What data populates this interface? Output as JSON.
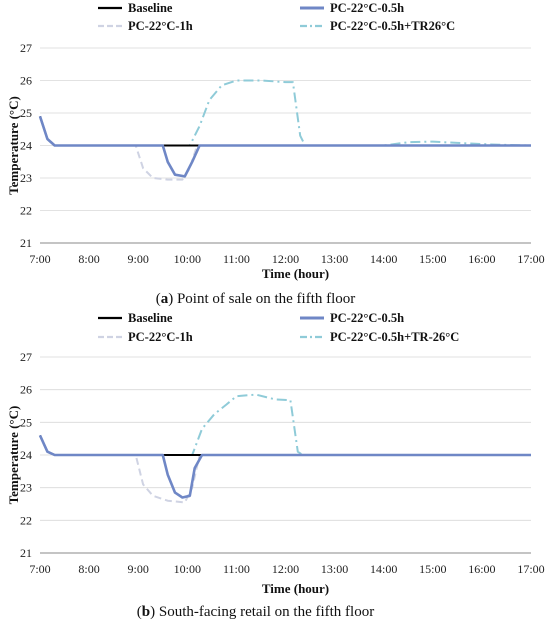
{
  "chart_data": [
    {
      "type": "line",
      "caption_letter": "a",
      "caption_text": "Point of sale on the fifth floor",
      "xlabel": "Time (hour)",
      "ylabel": "Temperature (°C)",
      "xlim": [
        7,
        17
      ],
      "ylim": [
        21,
        27
      ],
      "x_ticks": [
        7,
        8,
        9,
        10,
        11,
        12,
        13,
        14,
        15,
        16,
        17
      ],
      "x_tick_labels": [
        "7:00",
        "8:00",
        "9:00",
        "10:00",
        "11:00",
        "12:00",
        "13:00",
        "14:00",
        "15:00",
        "16:00",
        "17:00"
      ],
      "y_ticks": [
        21,
        22,
        23,
        24,
        25,
        26,
        27
      ],
      "y_tick_labels": [
        "21",
        "22",
        "23",
        "24",
        "25",
        "26",
        "27"
      ],
      "grid": "horizontal",
      "legend_position": "top",
      "series": [
        {
          "name": "Baseline",
          "color": "#000000",
          "style": "solid",
          "points": [
            [
              7.0,
              24.9
            ],
            [
              7.15,
              24.2
            ],
            [
              7.3,
              24.0
            ],
            [
              17.0,
              24.0
            ]
          ]
        },
        {
          "name": "PC-22°C-1h",
          "color": "#cfd3e3",
          "style": "dashed",
          "points": [
            [
              7.0,
              24.9
            ],
            [
              7.15,
              24.2
            ],
            [
              7.3,
              24.0
            ],
            [
              8.95,
              24.0
            ],
            [
              9.1,
              23.3
            ],
            [
              9.3,
              23.0
            ],
            [
              9.6,
              22.95
            ],
            [
              9.9,
              22.95
            ],
            [
              10.05,
              23.3
            ],
            [
              10.2,
              24.0
            ],
            [
              17.0,
              24.0
            ]
          ]
        },
        {
          "name": "PC-22°C-0.5h",
          "color": "#6f87c6",
          "style": "solid",
          "points": [
            [
              7.0,
              24.9
            ],
            [
              7.15,
              24.2
            ],
            [
              7.3,
              24.0
            ],
            [
              9.5,
              24.0
            ],
            [
              9.6,
              23.5
            ],
            [
              9.75,
              23.1
            ],
            [
              9.95,
              23.05
            ],
            [
              10.1,
              23.5
            ],
            [
              10.25,
              24.0
            ],
            [
              17.0,
              24.0
            ]
          ]
        },
        {
          "name": "PC-22°C-0.5h+TR26°C",
          "color": "#8fcbd8",
          "style": "dashdot",
          "points": [
            [
              7.0,
              24.9
            ],
            [
              7.15,
              24.2
            ],
            [
              7.3,
              24.0
            ],
            [
              10.05,
              24.0
            ],
            [
              10.25,
              24.6
            ],
            [
              10.45,
              25.4
            ],
            [
              10.7,
              25.85
            ],
            [
              11.0,
              26.0
            ],
            [
              11.5,
              26.0
            ],
            [
              12.0,
              25.95
            ],
            [
              12.15,
              25.95
            ],
            [
              12.3,
              24.3
            ],
            [
              12.4,
              24.0
            ],
            [
              14.0,
              24.0
            ],
            [
              14.5,
              24.1
            ],
            [
              15.0,
              24.12
            ],
            [
              15.5,
              24.08
            ],
            [
              16.2,
              24.03
            ],
            [
              17.0,
              24.0
            ]
          ]
        }
      ]
    },
    {
      "type": "line",
      "caption_letter": "b",
      "caption_text": "South-facing retail on the fifth floor",
      "xlabel": "Time (hour)",
      "ylabel": "Temperature (°C)",
      "xlim": [
        7,
        17
      ],
      "ylim": [
        21,
        27
      ],
      "x_ticks": [
        7,
        8,
        9,
        10,
        11,
        12,
        13,
        14,
        15,
        16,
        17
      ],
      "x_tick_labels": [
        "7:00",
        "8:00",
        "9:00",
        "10:00",
        "11:00",
        "12:00",
        "13:00",
        "14:00",
        "15:00",
        "16:00",
        "17:00"
      ],
      "y_ticks": [
        21,
        22,
        23,
        24,
        25,
        26,
        27
      ],
      "y_tick_labels": [
        "21",
        "22",
        "23",
        "24",
        "25",
        "26",
        "27"
      ],
      "grid": "horizontal",
      "legend_position": "top",
      "series": [
        {
          "name": "Baseline",
          "color": "#000000",
          "style": "solid",
          "points": [
            [
              7.0,
              24.6
            ],
            [
              7.15,
              24.1
            ],
            [
              7.3,
              24.0
            ],
            [
              17.0,
              24.0
            ]
          ]
        },
        {
          "name": "PC-22°C-1h",
          "color": "#cfd3e3",
          "style": "dashed",
          "points": [
            [
              7.0,
              24.6
            ],
            [
              7.15,
              24.1
            ],
            [
              7.3,
              24.0
            ],
            [
              8.95,
              24.0
            ],
            [
              9.1,
              23.1
            ],
            [
              9.3,
              22.75
            ],
            [
              9.6,
              22.6
            ],
            [
              9.95,
              22.55
            ],
            [
              10.1,
              23.0
            ],
            [
              10.25,
              24.0
            ],
            [
              17.0,
              24.0
            ]
          ]
        },
        {
          "name": "PC-22°C-0.5h",
          "color": "#6f87c6",
          "style": "solid",
          "points": [
            [
              7.0,
              24.6
            ],
            [
              7.15,
              24.1
            ],
            [
              7.3,
              24.0
            ],
            [
              9.5,
              24.0
            ],
            [
              9.6,
              23.4
            ],
            [
              9.75,
              22.85
            ],
            [
              9.9,
              22.7
            ],
            [
              10.05,
              22.75
            ],
            [
              10.15,
              23.6
            ],
            [
              10.3,
              24.0
            ],
            [
              17.0,
              24.0
            ]
          ]
        },
        {
          "name": "PC-22°C-0.5h+TR-26°C",
          "color": "#8fcbd8",
          "style": "dashdot",
          "points": [
            [
              7.0,
              24.6
            ],
            [
              7.15,
              24.1
            ],
            [
              7.3,
              24.0
            ],
            [
              10.1,
              24.0
            ],
            [
              10.3,
              24.8
            ],
            [
              10.55,
              25.25
            ],
            [
              10.8,
              25.55
            ],
            [
              11.0,
              25.8
            ],
            [
              11.4,
              25.85
            ],
            [
              11.8,
              25.7
            ],
            [
              12.1,
              25.68
            ],
            [
              12.25,
              24.1
            ],
            [
              12.35,
              24.0
            ],
            [
              17.0,
              24.0
            ]
          ]
        }
      ]
    }
  ]
}
